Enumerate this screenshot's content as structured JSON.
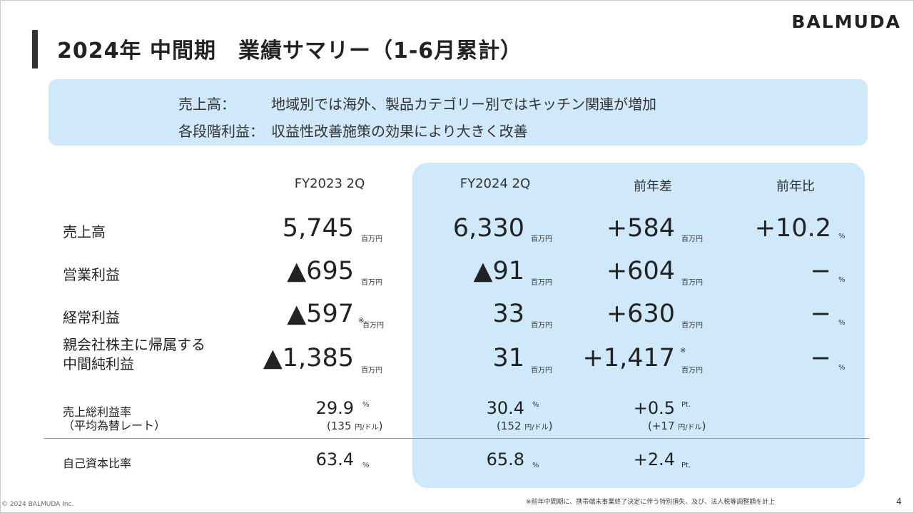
{
  "header": {
    "title": "2024年 中間期　業績サマリー（1-6月累計）",
    "brand": "BALMUDA"
  },
  "summary": {
    "line1_label": "売上高：",
    "line1_text": "地域別では海外、製品カテゴリー別ではキッチン関連が増加",
    "line2_label": "各段階利益：",
    "line2_text": "収益性改善施策の効果により大きく改善"
  },
  "columns": {
    "fy2023": "FY2023 2Q",
    "fy2024": "FY2024 2Q",
    "diff": "前年差",
    "ratio": "前年比"
  },
  "rows": {
    "sales": {
      "label": "売上高",
      "fy2023": "5,745",
      "fy2024": "6,330",
      "diff": "+584",
      "ratio": "+10.2"
    },
    "operating": {
      "label": "営業利益",
      "fy2023": "▲695",
      "fy2024": "▲91",
      "diff": "+604",
      "ratio": "−"
    },
    "ordinary": {
      "label": "経常利益",
      "fy2023": "▲597",
      "fy2024": "33",
      "diff": "+630",
      "ratio": "−"
    },
    "net": {
      "label1": "親会社株主に帰属する",
      "label2": "中間純利益",
      "fy2023": "▲1,385",
      "fy2024": "31",
      "diff": "+1,417",
      "ratio": "−"
    },
    "gross": {
      "label1": "売上総利益率",
      "label2": "（平均為替レート）",
      "fy2023": "29.9",
      "fy2023_rate": "135",
      "fy2024": "30.4",
      "fy2024_rate": "152",
      "diff": "+0.5",
      "diff_rate": "+17"
    },
    "equity": {
      "label": "自己資本比率",
      "fy2023": "63.4",
      "fy2024": "65.8",
      "diff": "+2.4"
    }
  },
  "units": {
    "million_yen": "百万円",
    "percent": "%",
    "point": "Pt.",
    "yen_per_dollar": "円/ドル",
    "note_mark": "※"
  },
  "footer": {
    "footnote": "※前年中間期に、携帯端末事業終了決定に伴う特別損失、及び、法人税等調整額を計上",
    "copyright": "© 2024 BALMUDA Inc.",
    "page": "4"
  }
}
